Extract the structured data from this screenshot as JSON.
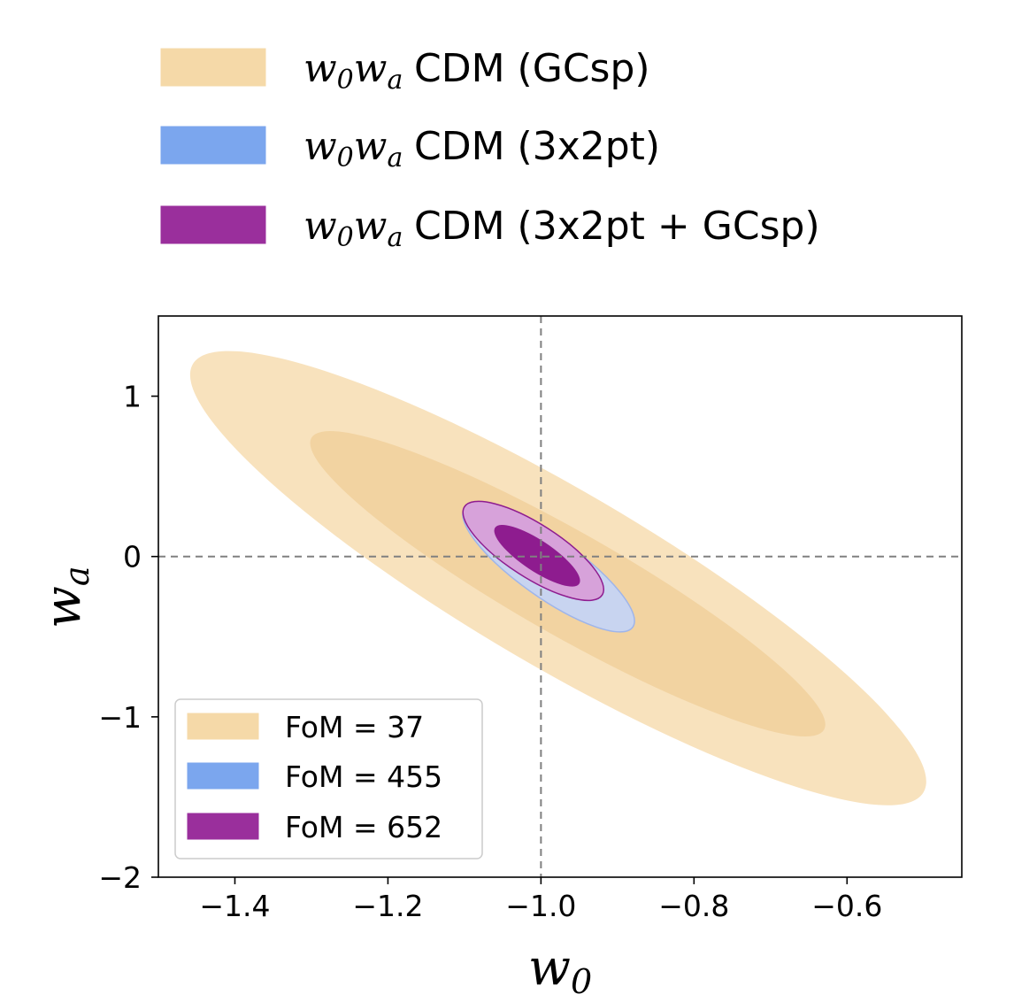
{
  "chart_data": {
    "type": "contour",
    "title": "",
    "xlabel": "w",
    "xlabel_sub": "0",
    "ylabel": "w",
    "ylabel_sub": "a",
    "xlim": [
      -1.5,
      -0.45
    ],
    "ylim": [
      -2.0,
      1.5
    ],
    "xticks": [
      -1.4,
      -1.2,
      -1.0,
      -0.8,
      -0.6
    ],
    "xtick_labels": [
      "−1.4",
      "−1.2",
      "−1.0",
      "−0.8",
      "−0.6"
    ],
    "yticks": [
      1,
      0,
      -1,
      -2
    ],
    "ytick_labels": [
      "1",
      "0",
      "−1",
      "−2"
    ],
    "reference_lines": {
      "w0": -1.0,
      "wa": 0.0
    },
    "top_legend": [
      {
        "math_w": "w",
        "math_sub0": "0",
        "math_w2": "w",
        "math_suba": "a",
        "text": "CDM (GCsp)",
        "color": "#f5d9a8"
      },
      {
        "math_w": "w",
        "math_sub0": "0",
        "math_w2": "w",
        "math_suba": "a",
        "text": "CDM (3x2pt)",
        "color": "#7ba6ee"
      },
      {
        "math_w": "w",
        "math_sub0": "0",
        "math_w2": "w",
        "math_suba": "a",
        "text": "CDM (3x2pt + GCsp)",
        "color": "#9a2f9c"
      }
    ],
    "inner_legend": [
      {
        "label": "FoM = 37",
        "color": "#f5d9a8"
      },
      {
        "label": "FoM = 455",
        "color": "#7ba6ee"
      },
      {
        "label": "FoM = 652",
        "color": "#9a2f9c"
      }
    ],
    "series": [
      {
        "name": "GCsp",
        "fom": 37,
        "color": "#f8e2bd",
        "inner_color": "#f2d3a1",
        "center": [
          -0.98,
          -0.14
        ],
        "contour_2sigma": [
          [
            -1.455,
            1.2
          ],
          [
            -0.5,
            -1.47
          ]
        ],
        "contour_1sigma": [
          [
            -1.3,
            0.74
          ],
          [
            -0.63,
            -1.08
          ]
        ],
        "width_2sigma": 0.23,
        "width_1sigma": 0.135
      },
      {
        "name": "3x2pt",
        "fom": 455,
        "color": "#c8d4f0",
        "inner_color": "#9fb5ea",
        "center": [
          -0.985,
          -0.04
        ],
        "contour_2sigma": [
          [
            -1.1,
            0.3
          ],
          [
            -0.88,
            -0.44
          ]
        ],
        "width_2sigma": 0.078
      },
      {
        "name": "3x2pt + GCsp",
        "fom": 652,
        "color": "#d7a2da",
        "inner_color": "#8e1c8f",
        "center": [
          -1.0,
          0.01
        ],
        "contour_2sigma": [
          [
            -1.1,
            0.31
          ],
          [
            -0.92,
            -0.24
          ]
        ],
        "contour_1sigma": [
          [
            -1.06,
            0.18
          ],
          [
            -0.95,
            -0.17
          ]
        ],
        "width_2sigma": 0.07,
        "width_1sigma": 0.04
      }
    ]
  }
}
